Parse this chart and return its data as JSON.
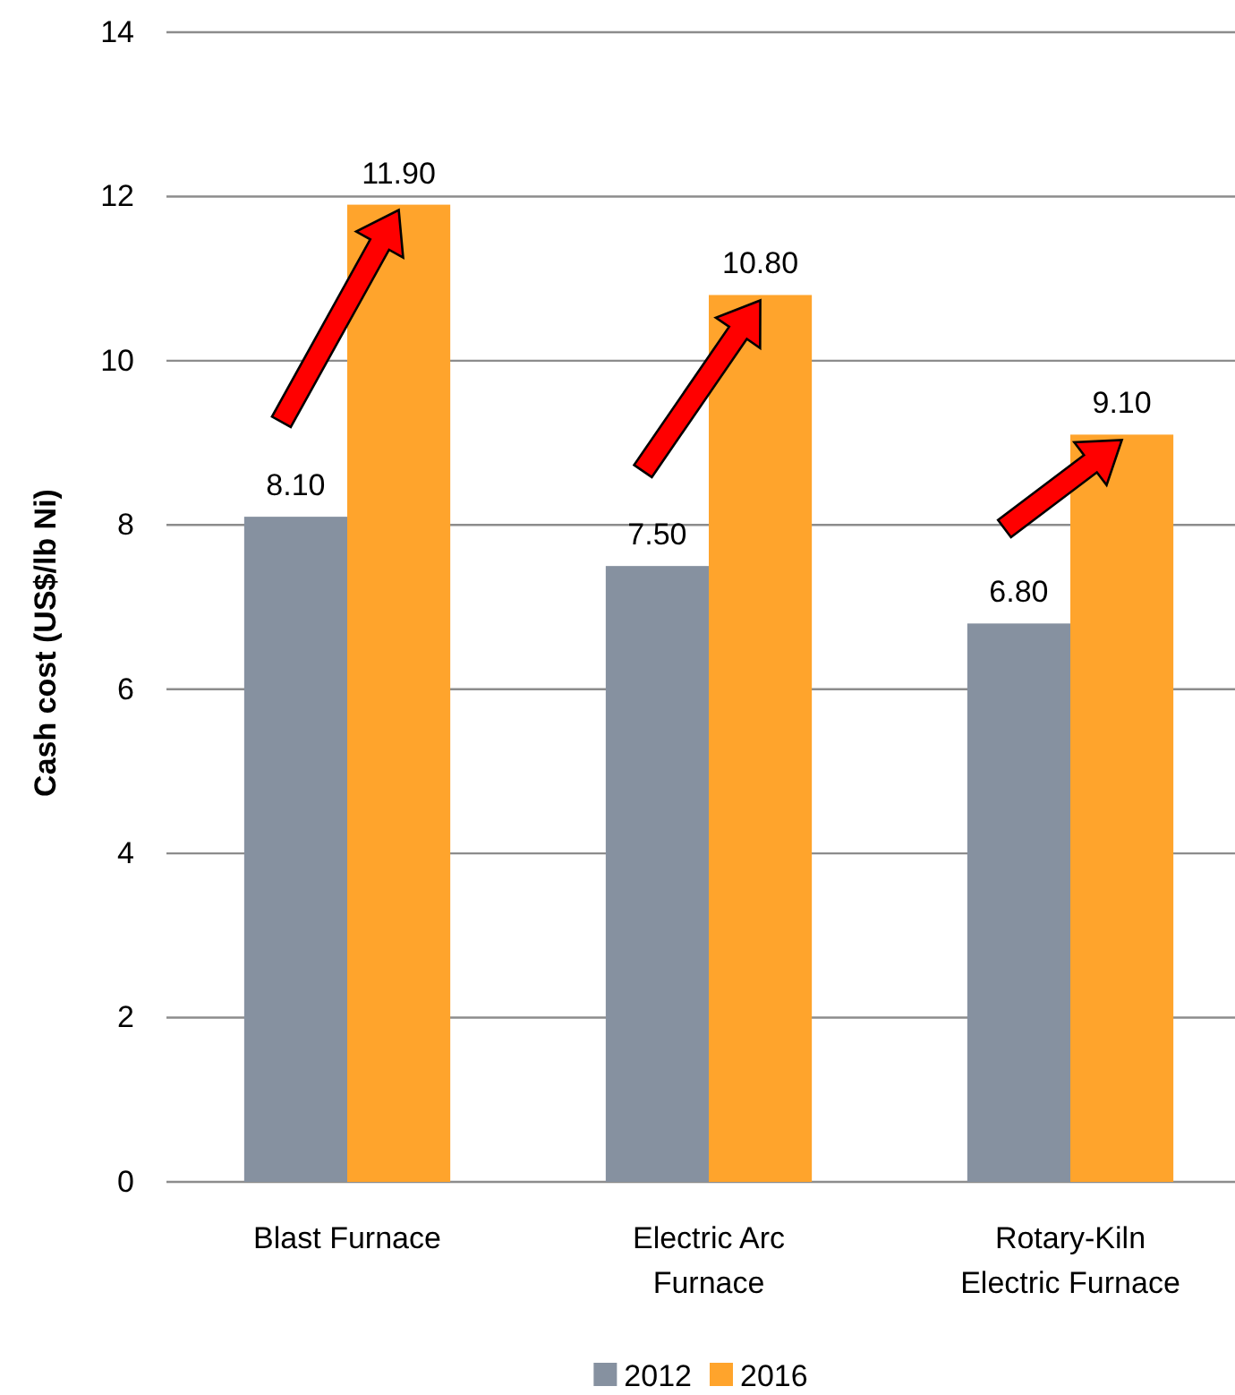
{
  "chart_data": {
    "type": "bar",
    "ylabel": "Cash cost (US$/lb Ni)",
    "categories": [
      "Blast Furnace",
      "Electric Arc Furnace",
      "Rotary-Kiln Electric Furnace"
    ],
    "series": [
      {
        "name": "2012",
        "color": "#8691a0",
        "values": [
          8.1,
          7.5,
          6.8
        ],
        "value_labels": [
          "8.10",
          "7.50",
          "6.80"
        ]
      },
      {
        "name": "2016",
        "color": "#ffa42c",
        "values": [
          11.9,
          10.8,
          9.1
        ],
        "value_labels": [
          "11.90",
          "10.80",
          "9.10"
        ]
      }
    ],
    "ylim": [
      0,
      14
    ],
    "yticks": [
      0,
      2,
      4,
      6,
      8,
      10,
      12,
      14
    ],
    "grid": "y",
    "legend": "bottom"
  }
}
